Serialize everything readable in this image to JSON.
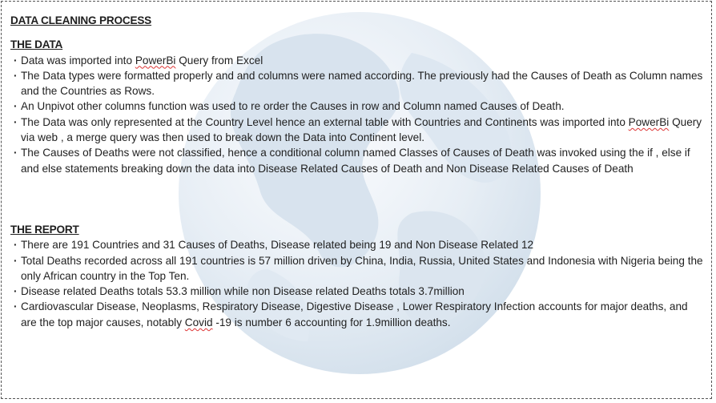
{
  "title": "DATA CLEANING PROCESS",
  "sections": [
    {
      "heading": "THE DATA",
      "items": [
        {
          "pre": "Data was imported into ",
          "sq": "PowerBi",
          "post": " Query from Excel"
        },
        {
          "pre": "The Data types were formatted properly and and columns were named according. The previously had the Causes of Death as Column names and the Countries as Rows.",
          "sq": "",
          "post": ""
        },
        {
          "pre": "An Unpivot other columns function was used to re order the Causes in row and Column named Causes of Death.",
          "sq": "",
          "post": ""
        },
        {
          "pre": "The Data was only represented at the Country Level hence an external table with Countries and Continents was imported into ",
          "sq": "PowerBi",
          "post": " Query via web , a merge query  was then used to break down the Data into Continent level."
        },
        {
          "pre": "The Causes of Deaths were not classified, hence a conditional column named Classes of Causes of Death was invoked using the if , else if and else statements breaking down the data into Disease Related Causes of Death and Non Disease Related Causes of Death",
          "sq": "",
          "post": ""
        }
      ]
    },
    {
      "heading": "THE REPORT",
      "items": [
        {
          "pre": "There are 191 Countries and 31 Causes of Deaths, Disease related being 19 and Non Disease Related 12",
          "sq": "",
          "post": ""
        },
        {
          "pre": "Total Deaths recorded across all 191 countries is 57 million driven by China, India, Russia, United States and Indonesia with Nigeria being the only African country in the Top Ten.",
          "sq": "",
          "post": ""
        },
        {
          "pre": "Disease related Deaths totals 53.3 million while non Disease related Deaths totals 3.7million",
          "sq": "",
          "post": ""
        },
        {
          "pre": "Cardiovascular Disease, Neoplasms, Respiratory Disease, Digestive Disease , Lower Respiratory Infection accounts for major deaths, and are the top major causes, notably ",
          "sq": "Covid",
          "post": " -19 is number 6 accounting for 1.9million deaths."
        }
      ]
    }
  ],
  "colors": {
    "globe_light": "#f2f6fa",
    "globe_mid": "#dbe6f0",
    "land": "#c7d6e4",
    "squiggle": "#d33333"
  }
}
